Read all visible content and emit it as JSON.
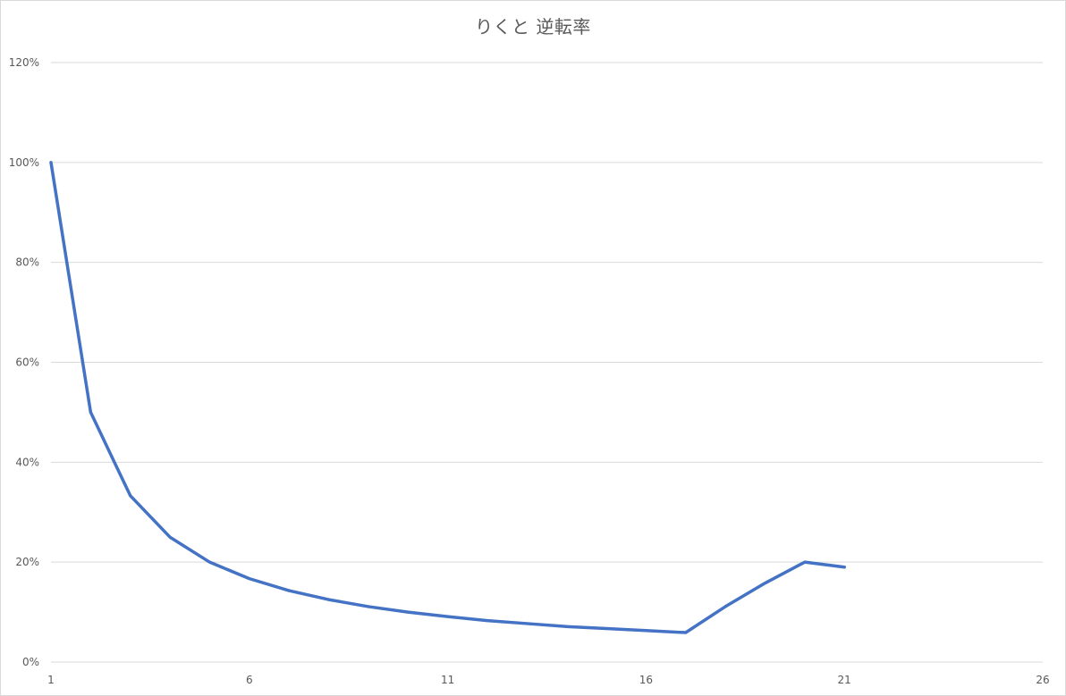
{
  "chart_data": {
    "type": "line",
    "title": "りくと 逆転率",
    "xlabel": "",
    "ylabel": "",
    "xlim": [
      1,
      26
    ],
    "ylim": [
      0,
      1.2
    ],
    "x_ticks": [
      1,
      6,
      11,
      16,
      21,
      26
    ],
    "y_ticks": [
      0,
      0.2,
      0.4,
      0.6,
      0.8,
      1.0,
      1.2
    ],
    "y_tick_labels": [
      "0%",
      "20%",
      "40%",
      "60%",
      "80%",
      "100%",
      "120%"
    ],
    "grid": true,
    "legend": "none",
    "series": [
      {
        "color": "#4472c4",
        "x": [
          1,
          2,
          3,
          4,
          5,
          6,
          7,
          8,
          9,
          10,
          11,
          12,
          13,
          14,
          15,
          16,
          17,
          18,
          19,
          20,
          21
        ],
        "values": [
          1.0,
          0.5,
          0.333,
          0.25,
          0.2,
          0.167,
          0.143,
          0.125,
          0.111,
          0.1,
          0.091,
          0.083,
          0.077,
          0.071,
          0.067,
          0.063,
          0.059,
          0.111,
          0.158,
          0.2,
          0.19
        ]
      }
    ]
  }
}
